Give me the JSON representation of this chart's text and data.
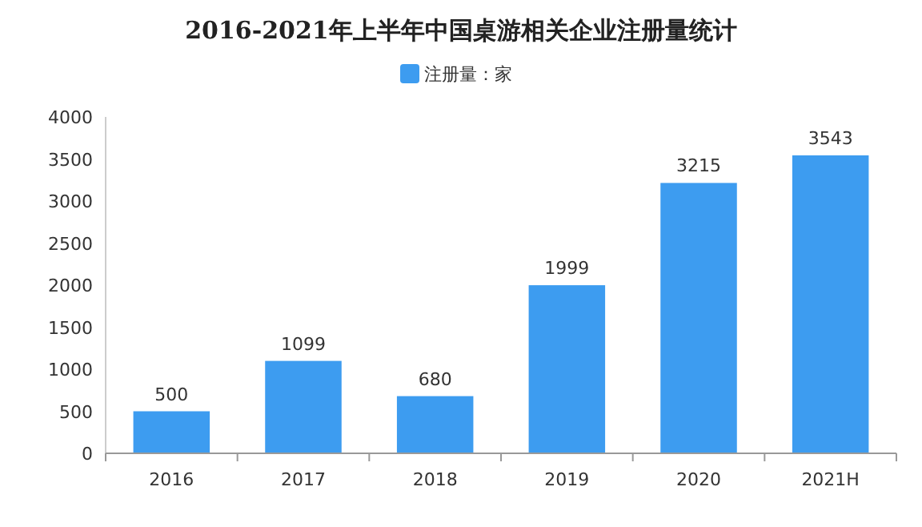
{
  "chart_data": {
    "type": "bar",
    "title": "2016-2021年上半年中国桌游相关企业注册量统计",
    "categories": [
      "2016",
      "2017",
      "2018",
      "2019",
      "2020",
      "2021H"
    ],
    "series": [
      {
        "name": "注册量：家",
        "color": "#3d9cf0",
        "values": [
          500,
          1099,
          680,
          1999,
          3215,
          3543
        ]
      }
    ],
    "ylim": [
      0,
      4000
    ],
    "yticks": [
      0,
      500,
      1000,
      1500,
      2000,
      2500,
      3000,
      3500,
      4000
    ],
    "data_labels": true,
    "legend": "top",
    "grid": false
  }
}
